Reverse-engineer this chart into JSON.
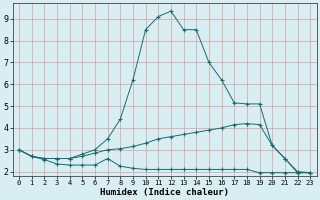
{
  "xlabel": "Humidex (Indice chaleur)",
  "bg_color": "#d9eef2",
  "grid_color": "#c8dfe3",
  "line_color": "#1a6b6b",
  "xlim": [
    -0.5,
    23.5
  ],
  "ylim": [
    1.8,
    9.7
  ],
  "xticks": [
    0,
    1,
    2,
    3,
    4,
    5,
    6,
    7,
    8,
    9,
    10,
    11,
    12,
    13,
    14,
    15,
    16,
    17,
    18,
    19,
    20,
    21,
    22,
    23
  ],
  "yticks": [
    2,
    3,
    4,
    5,
    6,
    7,
    8,
    9
  ],
  "line1_x": [
    0,
    1,
    2,
    3,
    4,
    5,
    6,
    7,
    8,
    9,
    10,
    11,
    12,
    13,
    14,
    15,
    16,
    17,
    18,
    19,
    20,
    21,
    22,
    23
  ],
  "line1_y": [
    3.0,
    2.7,
    2.55,
    2.35,
    2.3,
    2.3,
    2.3,
    2.6,
    2.25,
    2.15,
    2.1,
    2.1,
    2.1,
    2.1,
    2.1,
    2.1,
    2.1,
    2.1,
    2.1,
    1.95,
    1.95,
    1.95,
    1.95,
    1.95
  ],
  "line2_x": [
    0,
    1,
    2,
    3,
    4,
    5,
    6,
    7,
    8,
    9,
    10,
    11,
    12,
    13,
    14,
    15,
    16,
    17,
    18,
    19,
    20,
    21,
    22,
    23
  ],
  "line2_y": [
    3.0,
    2.7,
    2.6,
    2.6,
    2.6,
    2.7,
    2.85,
    3.0,
    3.05,
    3.15,
    3.3,
    3.5,
    3.6,
    3.7,
    3.8,
    3.9,
    4.0,
    4.15,
    4.2,
    4.15,
    3.2,
    2.6,
    2.0,
    1.95
  ],
  "line3_x": [
    0,
    1,
    2,
    3,
    4,
    5,
    6,
    7,
    8,
    9,
    10,
    11,
    12,
    13,
    14,
    15,
    16,
    17,
    18,
    19,
    20,
    21,
    22,
    23
  ],
  "line3_y": [
    3.0,
    2.7,
    2.6,
    2.6,
    2.6,
    2.8,
    3.0,
    3.5,
    4.4,
    6.2,
    8.5,
    9.1,
    9.35,
    8.5,
    8.5,
    7.0,
    6.2,
    5.15,
    5.1,
    5.1,
    3.2,
    2.6,
    1.95,
    1.95
  ]
}
